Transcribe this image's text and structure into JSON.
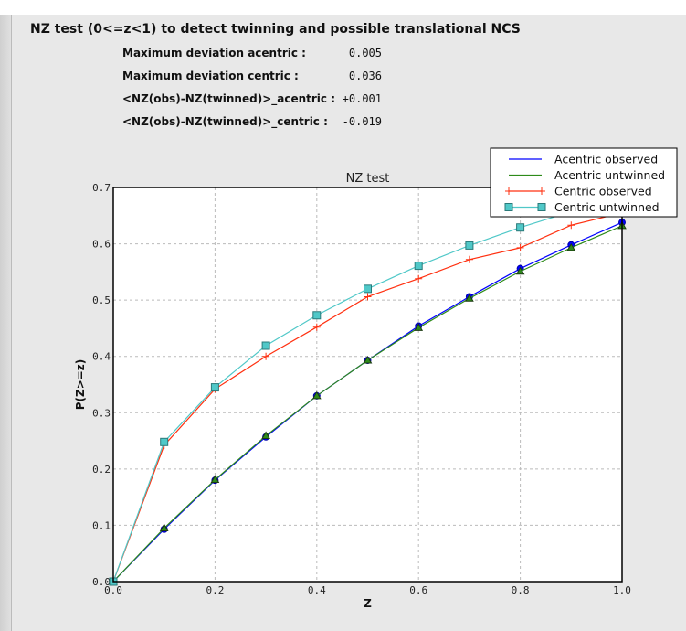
{
  "header": {
    "title": "NZ test (0<=z<1) to detect twinning and possible translational NCS"
  },
  "stats": [
    {
      "label": "Maximum deviation acentric :",
      "value": "0.005"
    },
    {
      "label": "Maximum deviation centric :",
      "value": "0.036"
    },
    {
      "label": "<NZ(obs)-NZ(twinned)>_acentric :",
      "value": "+0.001"
    },
    {
      "label": "<NZ(obs)-NZ(twinned)>_centric :",
      "value": "-0.019"
    }
  ],
  "chart_data": {
    "type": "line",
    "title": "NZ test",
    "xlabel": "Z",
    "ylabel": "P(Z>=z)",
    "xlim": [
      0,
      1
    ],
    "ylim": [
      0,
      0.7
    ],
    "xticks": [
      "0.0",
      "0.2",
      "0.4",
      "0.6",
      "0.8",
      "1.0"
    ],
    "yticks": [
      "0.0",
      "0.1",
      "0.2",
      "0.3",
      "0.4",
      "0.5",
      "0.6",
      "0.7"
    ],
    "grid": true,
    "legend_placement": "top-right",
    "x": [
      0,
      0.1,
      0.2,
      0.3,
      0.4,
      0.5,
      0.6,
      0.7,
      0.8,
      0.9,
      1.0
    ],
    "series": [
      {
        "name": "Acentric observed",
        "color": "#0000ff",
        "marker": "circle",
        "values": [
          0,
          0.093,
          0.18,
          0.257,
          0.33,
          0.393,
          0.454,
          0.506,
          0.556,
          0.598,
          0.638
        ]
      },
      {
        "name": "Acentric untwinned",
        "color": "#2e8b1a",
        "marker": "triangle",
        "values": [
          0,
          0.095,
          0.181,
          0.259,
          0.33,
          0.393,
          0.451,
          0.503,
          0.551,
          0.593,
          0.632
        ]
      },
      {
        "name": "Centric observed",
        "color": "#ff3010",
        "marker": "plus",
        "values": [
          0,
          0.242,
          0.342,
          0.4,
          0.452,
          0.506,
          0.538,
          0.572,
          0.593,
          0.633,
          0.655
        ]
      },
      {
        "name": "Centric untwinned",
        "color": "#50c8c8",
        "marker": "square",
        "values": [
          0,
          0.248,
          0.345,
          0.419,
          0.473,
          0.52,
          0.561,
          0.597,
          0.629,
          0.657,
          0.683
        ]
      }
    ]
  }
}
